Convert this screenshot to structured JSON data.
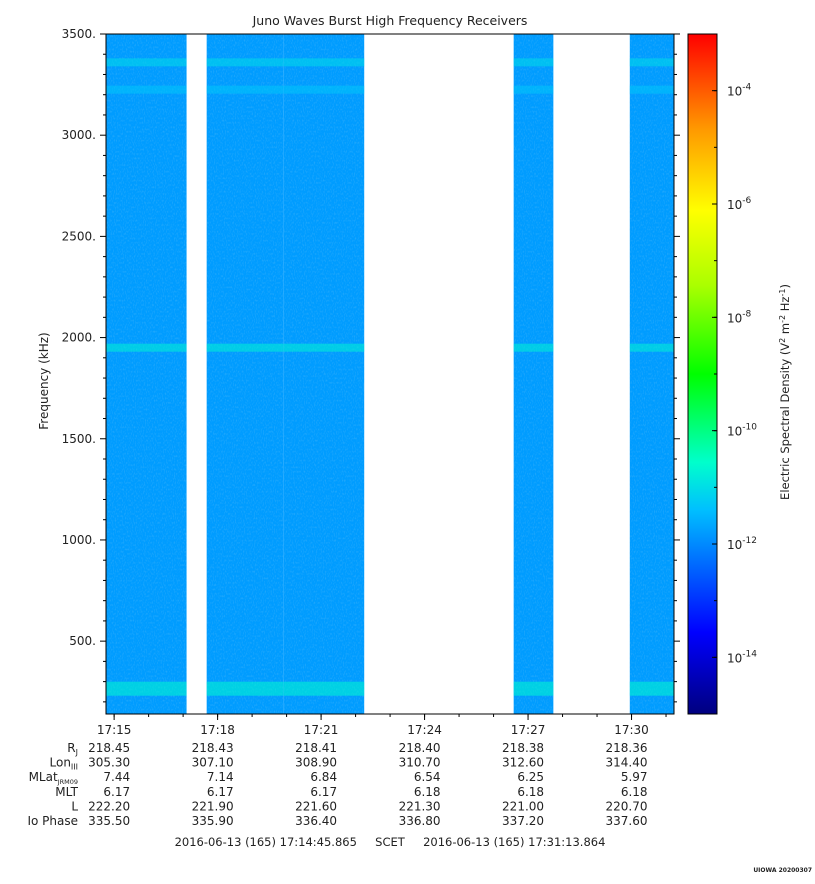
{
  "chart_data": {
    "type": "heatmap",
    "title": "Juno Waves Burst High Frequency Receivers",
    "ylabel": "Frequency (kHz)",
    "ylim": [
      140,
      3500
    ],
    "y_ticks": [
      {
        "value": 3500,
        "label": "3500."
      },
      {
        "value": 3000,
        "label": "3000."
      },
      {
        "value": 2500,
        "label": "2500."
      },
      {
        "value": 2000,
        "label": "2000."
      },
      {
        "value": 1500,
        "label": "1500."
      },
      {
        "value": 1000,
        "label": "1000."
      },
      {
        "value": 500,
        "label": "500."
      }
    ],
    "xlim": [
      "17:14:45.865",
      "17:31:13.864"
    ],
    "x_ticks": [
      "17:15",
      "17:18",
      "17:21",
      "17:24",
      "17:27",
      "17:30"
    ],
    "data_intervals": [
      [
        "17:14:45.865",
        "17:16:05"
      ],
      [
        "17:16:05",
        "17:17:06"
      ],
      [
        "17:17:41",
        "17:19:55"
      ],
      [
        "17:19:55",
        "17:22:15"
      ],
      [
        "17:26:35",
        "17:27:44"
      ],
      [
        "17:29:57",
        "17:31:13.864"
      ]
    ],
    "background_level_exp": -11.8,
    "emission_bands": [
      {
        "freq_khz": 3360,
        "level_exp": -11.0
      },
      {
        "freq_khz": 3225,
        "level_exp": -11.3
      },
      {
        "freq_khz": 1950,
        "level_exp": -10.7
      },
      {
        "freq_khz": 265,
        "level_exp": -10.6
      }
    ],
    "colorbar": {
      "label": "Electric Spectral Density (V",
      "label_sup1": "2",
      "label_mid": " m",
      "label_sup2": "-2",
      "label_mid2": " Hz",
      "label_sup3": "-1",
      "label_end": ")",
      "scale": "log",
      "range_exp": [
        -15,
        -3
      ],
      "ticks": [
        {
          "exp": -4,
          "base": "10",
          "power": "-4"
        },
        {
          "exp": -6,
          "base": "10",
          "power": "-6"
        },
        {
          "exp": -8,
          "base": "10",
          "power": "-8"
        },
        {
          "exp": -10,
          "base": "10",
          "power": "-10"
        },
        {
          "exp": -12,
          "base": "10",
          "power": "-12"
        },
        {
          "exp": -14,
          "base": "10",
          "power": "-14"
        }
      ]
    },
    "ephemeris": [
      {
        "label": "R",
        "sub": "J",
        "values": [
          "218.45",
          "218.43",
          "218.41",
          "218.40",
          "218.38",
          "218.36"
        ]
      },
      {
        "label": "Lon",
        "sub": "III",
        "values": [
          "305.30",
          "307.10",
          "308.90",
          "310.70",
          "312.60",
          "314.40"
        ]
      },
      {
        "label": "MLat",
        "sub": "JRM09",
        "values": [
          "7.44",
          "7.14",
          "6.84",
          "6.54",
          "6.25",
          "5.97"
        ]
      },
      {
        "label": "MLT",
        "sub": "",
        "values": [
          "6.17",
          "6.17",
          "6.17",
          "6.18",
          "6.18",
          "6.18"
        ]
      },
      {
        "label": "L",
        "sub": "",
        "values": [
          "222.20",
          "221.90",
          "221.60",
          "221.30",
          "221.00",
          "220.70"
        ]
      },
      {
        "label": "Io Phase",
        "sub": "",
        "values": [
          "335.50",
          "335.90",
          "336.40",
          "336.80",
          "337.20",
          "337.60"
        ]
      }
    ],
    "time_range_text": "2016-06-13 (165) 17:14:45.865     SCET     2016-06-13 (165) 17:31:13.864",
    "footer_tag": "UIOWA 20200307"
  }
}
